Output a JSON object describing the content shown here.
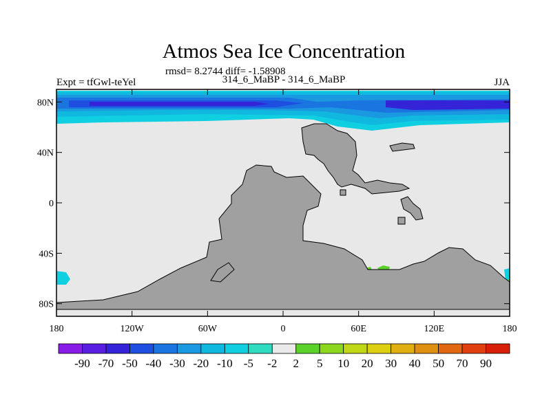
{
  "chart_data": {
    "type": "heatmap",
    "title": "Atmos Sea Ice Concentration",
    "stats_line": "rmsd= 8.2744 diff= -1.58908",
    "left_label": "Expt = tfGwl-teYel",
    "center_label": "314_6_MaBP - 314_6_MaBP",
    "right_label": "JJA",
    "x_range": [
      -180,
      180
    ],
    "y_range": [
      -90,
      90
    ],
    "x_ticks": [
      {
        "value": -180,
        "label": "180"
      },
      {
        "value": -120,
        "label": "120W"
      },
      {
        "value": -60,
        "label": "60W"
      },
      {
        "value": 0,
        "label": "0"
      },
      {
        "value": 60,
        "label": "60E"
      },
      {
        "value": 120,
        "label": "120E"
      },
      {
        "value": 180,
        "label": "180"
      }
    ],
    "y_ticks": [
      {
        "value": 80,
        "label": "80N"
      },
      {
        "value": 40,
        "label": "40N"
      },
      {
        "value": 0,
        "label": "0"
      },
      {
        "value": -40,
        "label": "40S"
      },
      {
        "value": -80,
        "label": "80S"
      }
    ],
    "colorbar": {
      "levels": [
        "-90",
        "-70",
        "-50",
        "-40",
        "-30",
        "-20",
        "-10",
        "-5",
        "-2",
        "2",
        "5",
        "10",
        "20",
        "30",
        "40",
        "50",
        "70",
        "90"
      ],
      "colors": [
        "#8a1ce8",
        "#5a1ee0",
        "#3523d8",
        "#1f4fe0",
        "#1a75e0",
        "#1a98e0",
        "#10b8e0",
        "#10cfe0",
        "#30dcc0",
        "#eaeaea",
        "#5ad22a",
        "#8cd81e",
        "#c0d814",
        "#dcd010",
        "#e0b010",
        "#e09010",
        "#e06810",
        "#e04010",
        "#d82008"
      ]
    },
    "land_color": "#a0a0a0",
    "ocean_color": "#e8e8e8"
  }
}
